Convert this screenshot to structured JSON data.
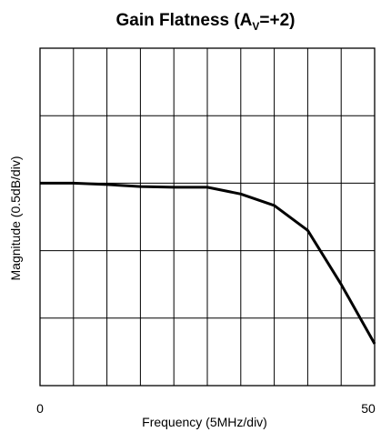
{
  "chart_data": {
    "type": "line",
    "title": {
      "main": "Gain Flatness (A",
      "sub": "V",
      "suffix": "=+2)"
    },
    "xlabel": "Frequency (5MHz/div)",
    "ylabel": "Magnitude (0.5dB/div)",
    "x_tick_labels": [
      "0",
      "50"
    ],
    "xlim": [
      0,
      50
    ],
    "ylim": [
      0,
      5
    ],
    "x_divisions": 10,
    "y_divisions": 5,
    "grid": true,
    "line_color": "#000000",
    "series": [
      {
        "x": [
          0,
          5,
          10,
          15,
          20,
          25,
          30,
          35,
          40,
          45,
          50
        ],
        "y": [
          3.0,
          3.0,
          2.98,
          2.95,
          2.94,
          2.94,
          2.84,
          2.67,
          2.3,
          1.5,
          0.62
        ]
      }
    ]
  }
}
